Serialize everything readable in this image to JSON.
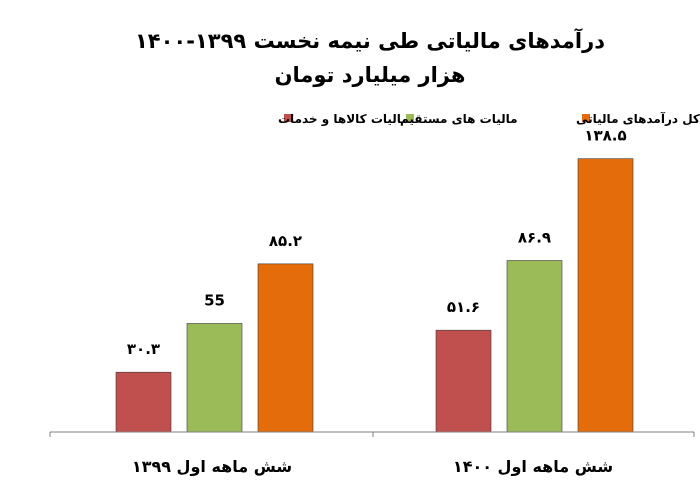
{
  "chart_data": {
    "type": "bar",
    "title": "درآمدهای مالیاتی طی نیمه نخست ۱۳۹۹-۱۴۰۰",
    "subtitle": "هزار میلیارد تومان",
    "categories": [
      "شش ماهه اول ۱۳۹۹",
      "شش ماهه اول ۱۴۰۰"
    ],
    "series": [
      {
        "name": "مالیات کالاها و خدمات",
        "color": "#c0504d",
        "values": [
          30.3,
          51.6
        ],
        "labels": [
          "۳۰.۳",
          "۵۱.۶"
        ]
      },
      {
        "name": "مالیات های مستقیم",
        "color": "#9bbb59",
        "values": [
          55,
          86.9
        ],
        "labels": [
          "55",
          "۸۶.۹"
        ]
      },
      {
        "name": "کل درآمدهای مالیاتی",
        "color": "#e46c0a",
        "values": [
          85.2,
          138.5
        ],
        "labels": [
          "۸۵.۲",
          "۱۳۸.۵"
        ]
      }
    ],
    "ylim": [
      0,
      150
    ],
    "grid": false,
    "legend_position": "top"
  }
}
